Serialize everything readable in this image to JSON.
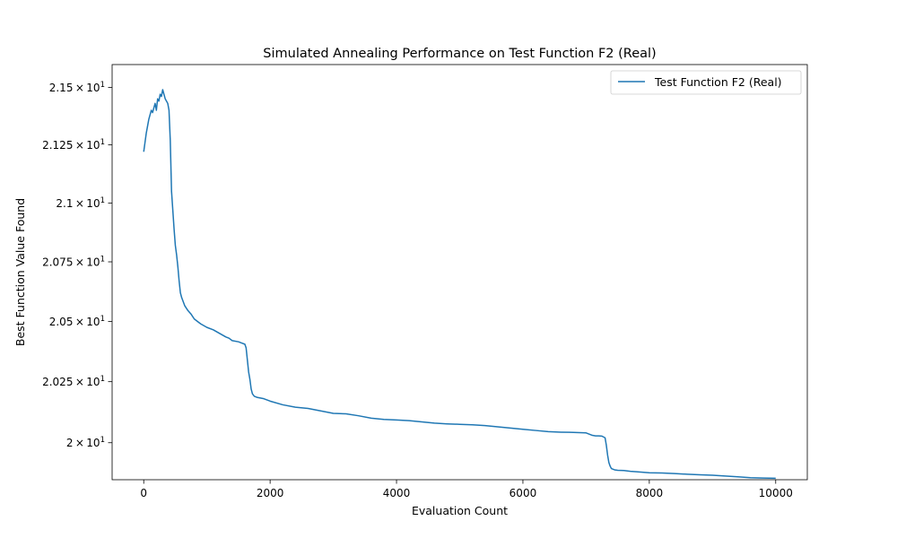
{
  "chart_data": {
    "type": "line",
    "title": "Simulated Annealing Performance on Test Function F2 (Real)",
    "xlabel": "Evaluation Count",
    "ylabel": "Best Function Value Found",
    "xlim": [
      -500,
      10500
    ],
    "ylim": [
      19.85,
      21.6
    ],
    "y_scale": "log",
    "x_ticks": [
      0,
      2000,
      4000,
      6000,
      8000,
      10000
    ],
    "x_tick_labels": [
      "0",
      "2000",
      "4000",
      "6000",
      "8000",
      "10000"
    ],
    "y_ticks": [
      {
        "value": 21.5,
        "mantissa": "2.15",
        "exponent": "1"
      },
      {
        "value": 21.25,
        "mantissa": "2.125",
        "exponent": "1"
      },
      {
        "value": 21.0,
        "mantissa": "2.1",
        "exponent": "1"
      },
      {
        "value": 20.75,
        "mantissa": "2.075",
        "exponent": "1"
      },
      {
        "value": 20.5,
        "mantissa": "2.05",
        "exponent": "1"
      },
      {
        "value": 20.25,
        "mantissa": "2.025",
        "exponent": "1"
      },
      {
        "value": 20.0,
        "mantissa": "2",
        "exponent": "1"
      }
    ],
    "tick_multiply_sign": "×",
    "tick_base": "10",
    "legend": {
      "position": "upper right"
    },
    "grid": false,
    "series": [
      {
        "name": "Test Function F2 (Real)",
        "color": "#1f77b4",
        "x": [
          0,
          20,
          40,
          60,
          80,
          100,
          120,
          140,
          160,
          180,
          200,
          220,
          240,
          260,
          280,
          300,
          320,
          340,
          360,
          380,
          400,
          420,
          440,
          460,
          480,
          500,
          520,
          540,
          560,
          580,
          600,
          650,
          700,
          750,
          800,
          900,
          1000,
          1100,
          1200,
          1300,
          1350,
          1400,
          1500,
          1550,
          1600,
          1620,
          1640,
          1660,
          1680,
          1700,
          1720,
          1750,
          1800,
          1900,
          2000,
          2200,
          2400,
          2600,
          2800,
          3000,
          3200,
          3400,
          3600,
          3800,
          4000,
          4200,
          4400,
          4600,
          4800,
          5000,
          5200,
          5400,
          5600,
          5800,
          6000,
          6200,
          6400,
          6600,
          6800,
          7000,
          7050,
          7100,
          7150,
          7200,
          7250,
          7300,
          7320,
          7340,
          7360,
          7380,
          7400,
          7450,
          7500,
          7600,
          7700,
          7800,
          8000,
          8200,
          8400,
          8600,
          8800,
          9000,
          9200,
          9400,
          9600,
          9800,
          10000
        ],
        "y": [
          21.22,
          21.26,
          21.3,
          21.33,
          21.36,
          21.38,
          21.4,
          21.39,
          21.41,
          21.43,
          21.4,
          21.45,
          21.44,
          21.47,
          21.46,
          21.49,
          21.47,
          21.45,
          21.44,
          21.43,
          21.4,
          21.27,
          21.05,
          20.97,
          20.89,
          20.82,
          20.78,
          20.73,
          20.67,
          20.62,
          20.6,
          20.565,
          20.545,
          20.53,
          20.51,
          20.49,
          20.475,
          20.465,
          20.45,
          20.435,
          20.43,
          20.42,
          20.415,
          20.41,
          20.405,
          20.39,
          20.34,
          20.29,
          20.26,
          20.22,
          20.2,
          20.19,
          20.185,
          20.18,
          20.17,
          20.155,
          20.145,
          20.14,
          20.13,
          20.12,
          20.118,
          20.11,
          20.1,
          20.095,
          20.093,
          20.09,
          20.085,
          20.08,
          20.077,
          20.075,
          20.073,
          20.07,
          20.065,
          20.06,
          20.055,
          20.05,
          20.045,
          20.043,
          20.042,
          20.04,
          20.035,
          20.03,
          20.028,
          20.028,
          20.027,
          20.02,
          19.99,
          19.95,
          19.92,
          19.905,
          19.895,
          19.89,
          19.888,
          19.887,
          19.884,
          19.882,
          19.878,
          19.877,
          19.875,
          19.872,
          19.87,
          19.868,
          19.865,
          19.862,
          19.858,
          19.857,
          19.856
        ]
      }
    ]
  }
}
